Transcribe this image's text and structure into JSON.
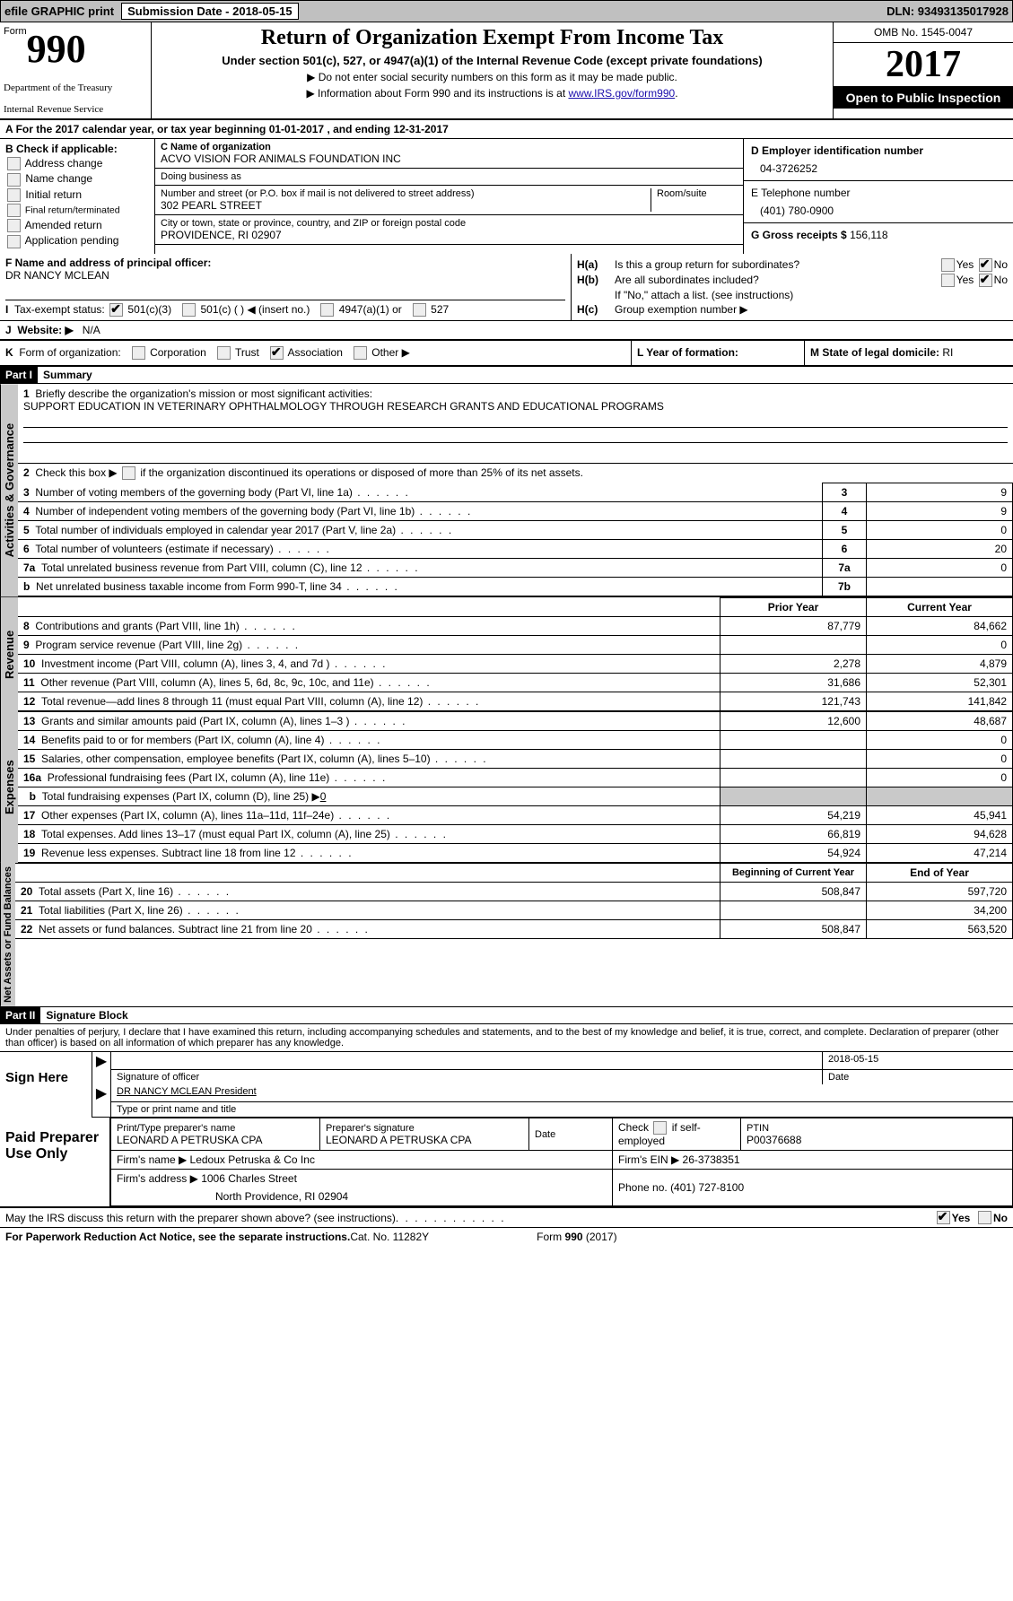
{
  "topbar": {
    "efile": "efile GRAPHIC print",
    "submission_label": "Submission Date - ",
    "submission_date": "2018-05-15",
    "dln_label": "DLN: ",
    "dln": "93493135017928"
  },
  "header": {
    "form_label": "Form",
    "form_number": "990",
    "agency1": "Department of the Treasury",
    "agency2": "Internal Revenue Service",
    "title": "Return of Organization Exempt From Income Tax",
    "subtitle": "Under section 501(c), 527, or 4947(a)(1) of the Internal Revenue Code (except private foundations)",
    "note1": "▶ Do not enter social security numbers on this form as it may be made public.",
    "note2_pre": "▶ Information about Form 990 and its instructions is at ",
    "note2_link": "www.IRS.gov/form990",
    "omb": "OMB No. 1545-0047",
    "year": "2017",
    "open_inspect": "Open to Public Inspection"
  },
  "rowA": {
    "lead": "A",
    "text_pre": "For the 2017 calendar year, or tax year beginning ",
    "begin": "01-01-2017",
    "mid": "  , and ending ",
    "end": "12-31-2017"
  },
  "colB": {
    "lead": "B",
    "header": "Check if applicable:",
    "items": [
      "Address change",
      "Name change",
      "Initial return",
      "Final return/terminated",
      "Amended return",
      "Application pending"
    ]
  },
  "colC": {
    "name_label": "C Name of organization",
    "name": "ACVO VISION FOR ANIMALS FOUNDATION INC",
    "dba_label": "Doing business as",
    "dba": "",
    "street_label": "Number and street (or P.O. box if mail is not delivered to street address)",
    "room_label": "Room/suite",
    "street": "302 PEARL STREET",
    "city_label": "City or town, state or province, country, and ZIP or foreign postal code",
    "city": "PROVIDENCE, RI  02907"
  },
  "colD": {
    "ein_label": "D Employer identification number",
    "ein": "04-3726252",
    "phone_label": "E Telephone number",
    "phone": "(401) 780-0900",
    "gross_label": "G Gross receipts $ ",
    "gross": "156,118"
  },
  "rowF": {
    "label": "F  Name and address of principal officer:",
    "name": "DR NANCY MCLEAN"
  },
  "rowH": {
    "ha_label": "H(a)",
    "ha_text": "Is this a group return for subordinates?",
    "hb_label": "H(b)",
    "hb_text": "Are all subordinates included?",
    "hb_note": "If \"No,\" attach a list. (see instructions)",
    "hc_label": "H(c)",
    "hc_text": "Group exemption number ▶",
    "yes": "Yes",
    "no": "No"
  },
  "rowI": {
    "lead": "I",
    "label": "Tax-exempt status:",
    "opt1": "501(c)(3)",
    "opt2": "501(c) (  ) ◀ (insert no.)",
    "opt3": "4947(a)(1) or",
    "opt4": "527"
  },
  "rowJ": {
    "lead": "J",
    "label": "Website: ▶",
    "value": "N/A"
  },
  "rowK": {
    "lead": "K",
    "label": "Form of organization:",
    "opts": [
      "Corporation",
      "Trust",
      "Association",
      "Other ▶"
    ],
    "L_label": "L Year of formation:",
    "M_label": "M State of legal domicile: ",
    "M_value": "RI"
  },
  "part1": {
    "header": "Part I",
    "title": "Summary",
    "q1_lead": "1",
    "q1": "Briefly describe the organization's mission or most significant activities:",
    "mission": "SUPPORT EDUCATION IN VETERINARY OPHTHALMOLOGY THROUGH RESEARCH GRANTS AND EDUCATIONAL PROGRAMS",
    "q2_lead": "2",
    "q2": "Check this box ▶  if the organization discontinued its operations or disposed of more than 25% of its net assets.",
    "governance_rows": [
      {
        "n": "3",
        "desc": "Number of voting members of the governing body (Part VI, line 1a)",
        "box": "3",
        "val": "9"
      },
      {
        "n": "4",
        "desc": "Number of independent voting members of the governing body (Part VI, line 1b)",
        "box": "4",
        "val": "9"
      },
      {
        "n": "5",
        "desc": "Total number of individuals employed in calendar year 2017 (Part V, line 2a)",
        "box": "5",
        "val": "0"
      },
      {
        "n": "6",
        "desc": "Total number of volunteers (estimate if necessary)",
        "box": "6",
        "val": "20"
      },
      {
        "n": "7a",
        "desc": "Total unrelated business revenue from Part VIII, column (C), line 12",
        "box": "7a",
        "val": "0"
      },
      {
        "n": "b",
        "desc": "Net unrelated business taxable income from Form 990-T, line 34",
        "box": "7b",
        "val": ""
      }
    ],
    "col_prior": "Prior Year",
    "col_current": "Current Year",
    "revenue_rows": [
      {
        "n": "8",
        "desc": "Contributions and grants (Part VIII, line 1h)",
        "prior": "87,779",
        "curr": "84,662"
      },
      {
        "n": "9",
        "desc": "Program service revenue (Part VIII, line 2g)",
        "prior": "",
        "curr": "0"
      },
      {
        "n": "10",
        "desc": "Investment income (Part VIII, column (A), lines 3, 4, and 7d )",
        "prior": "2,278",
        "curr": "4,879"
      },
      {
        "n": "11",
        "desc": "Other revenue (Part VIII, column (A), lines 5, 6d, 8c, 9c, 10c, and 11e)",
        "prior": "31,686",
        "curr": "52,301"
      },
      {
        "n": "12",
        "desc": "Total revenue—add lines 8 through 11 (must equal Part VIII, column (A), line 12)",
        "prior": "121,743",
        "curr": "141,842"
      }
    ],
    "expense_rows": [
      {
        "n": "13",
        "desc": "Grants and similar amounts paid (Part IX, column (A), lines 1–3 )",
        "prior": "12,600",
        "curr": "48,687"
      },
      {
        "n": "14",
        "desc": "Benefits paid to or for members (Part IX, column (A), line 4)",
        "prior": "",
        "curr": "0"
      },
      {
        "n": "15",
        "desc": "Salaries, other compensation, employee benefits (Part IX, column (A), lines 5–10)",
        "prior": "",
        "curr": "0"
      },
      {
        "n": "16a",
        "desc": "Professional fundraising fees (Part IX, column (A), line 11e)",
        "prior": "",
        "curr": "0"
      }
    ],
    "line16b_lead": "b",
    "line16b": "Total fundraising expenses (Part IX, column (D), line 25) ▶",
    "line16b_val": "0",
    "expense_rows2": [
      {
        "n": "17",
        "desc": "Other expenses (Part IX, column (A), lines 11a–11d, 11f–24e)",
        "prior": "54,219",
        "curr": "45,941"
      },
      {
        "n": "18",
        "desc": "Total expenses. Add lines 13–17 (must equal Part IX, column (A), line 25)",
        "prior": "66,819",
        "curr": "94,628"
      },
      {
        "n": "19",
        "desc": "Revenue less expenses. Subtract line 18 from line 12",
        "prior": "54,924",
        "curr": "47,214"
      }
    ],
    "col_begin": "Beginning of Current Year",
    "col_end": "End of Year",
    "balance_rows": [
      {
        "n": "20",
        "desc": "Total assets (Part X, line 16)",
        "prior": "508,847",
        "curr": "597,720"
      },
      {
        "n": "21",
        "desc": "Total liabilities (Part X, line 26)",
        "prior": "",
        "curr": "34,200"
      },
      {
        "n": "22",
        "desc": "Net assets or fund balances. Subtract line 21 from line 20",
        "prior": "508,847",
        "curr": "563,520"
      }
    ]
  },
  "vlabels": {
    "gov": "Activities & Governance",
    "rev": "Revenue",
    "exp": "Expenses",
    "bal": "Net Assets or Fund Balances"
  },
  "part2": {
    "header": "Part II",
    "title": "Signature Block",
    "perjury": "Under penalties of perjury, I declare that I have examined this return, including accompanying schedules and statements, and to the best of my knowledge and belief, it is true, correct, and complete. Declaration of preparer (other than officer) is based on all information of which preparer has any knowledge.",
    "sign_here": "Sign Here",
    "sig_officer_label": "Signature of officer",
    "sig_date": "2018-05-15",
    "date_label": "Date",
    "officer_name": "DR NANCY MCLEAN  President",
    "type_name_label": "Type or print name and title",
    "paid_preparer": "Paid Preparer Use Only",
    "prep_name_label": "Print/Type preparer's name",
    "prep_name": "LEONARD A PETRUSKA CPA",
    "prep_sig_label": "Preparer's signature",
    "prep_sig": "LEONARD A PETRUSKA CPA",
    "prep_date_label": "Date",
    "self_emp_label": "Check  if self-employed",
    "ptin_label": "PTIN",
    "ptin": "P00376688",
    "firm_name_label": "Firm's name      ▶ ",
    "firm_name": "Ledoux Petruska & Co Inc",
    "firm_ein_label": "Firm's EIN ▶ ",
    "firm_ein": "26-3738351",
    "firm_addr_label": "Firm's address ▶ ",
    "firm_addr1": "1006 Charles Street",
    "firm_addr2": "North Providence, RI  02904",
    "firm_phone_label": "Phone no. ",
    "firm_phone": "(401) 727-8100"
  },
  "footer": {
    "discuss": "May the IRS discuss this return with the preparer shown above? (see instructions)",
    "yes": "Yes",
    "no": "No",
    "paperwork": "For Paperwork Reduction Act Notice, see the separate instructions.",
    "catno": "Cat. No. 11282Y",
    "formref": "Form 990 (2017)"
  }
}
